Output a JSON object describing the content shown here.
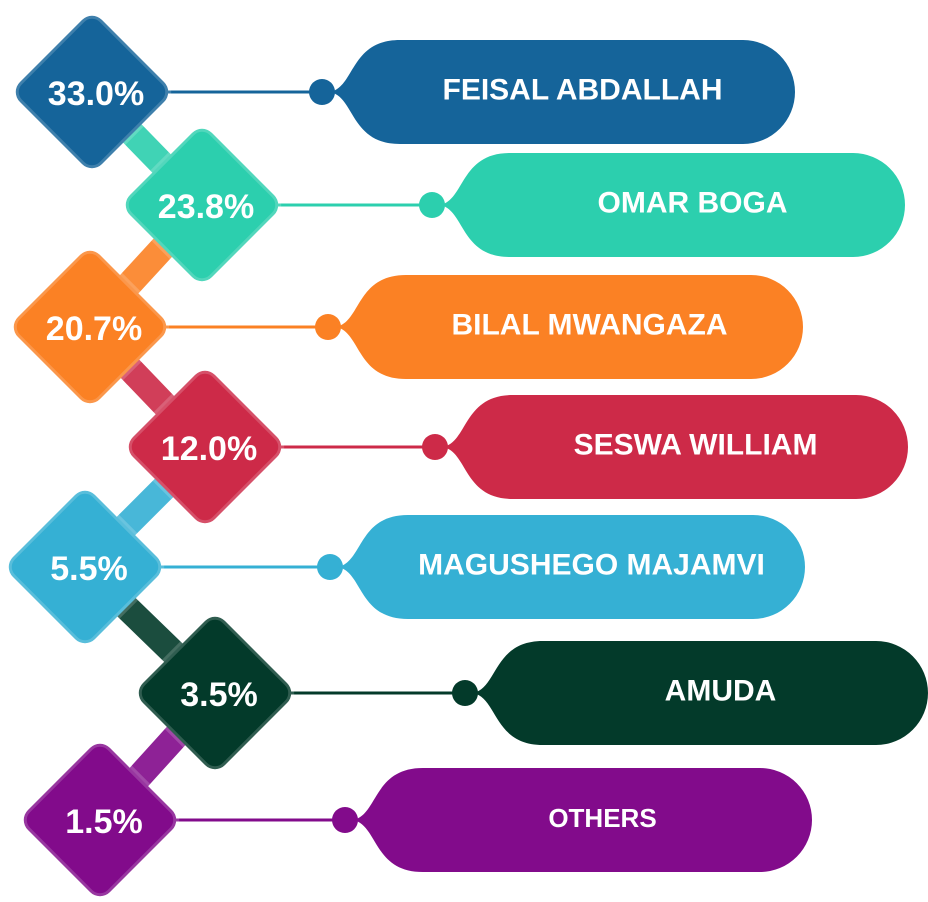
{
  "chart_data": {
    "type": "diamond-list",
    "categories": [
      "FEISAL ABDALLAH",
      "OMAR BOGA",
      "BILAL MWANGAZA",
      "SESWA WILLIAM",
      "MAGUSHEGO MAJAMVI",
      "AMUDA",
      "OTHERS"
    ],
    "values": [
      33.0,
      23.8,
      20.7,
      12.0,
      5.5,
      3.5,
      1.5
    ],
    "value_labels": [
      "33.0%",
      "23.8%",
      "20.7%",
      "12.0%",
      "5.5%",
      "3.5%",
      "1.5%"
    ],
    "colors": [
      "#15649a",
      "#2ccfae",
      "#fb8124",
      "#cd2a48",
      "#35b0d4",
      "#033a2a",
      "#820b8b"
    ]
  }
}
